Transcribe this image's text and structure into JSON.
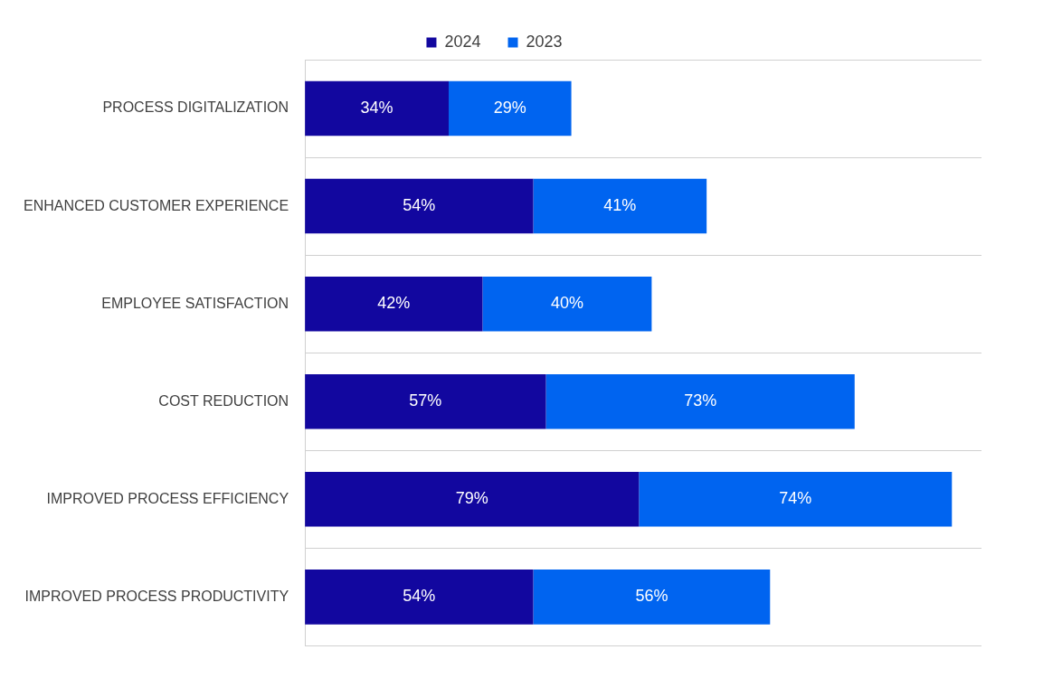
{
  "chart_data": {
    "type": "bar",
    "orientation": "horizontal",
    "stacked": true,
    "categories": [
      "PROCESS DIGITALIZATION",
      "ENHANCED CUSTOMER EXPERIENCE",
      "EMPLOYEE SATISFACTION",
      "COST REDUCTION",
      "IMPROVED PROCESS EFFICIENCY",
      "IMPROVED PROCESS PRODUCTIVITY"
    ],
    "series": [
      {
        "name": "2024",
        "color": "#12079f",
        "values": [
          34,
          54,
          42,
          57,
          79,
          54
        ],
        "value_labels": [
          "34%",
          "54%",
          "42%",
          "57%",
          "79%",
          "54%"
        ]
      },
      {
        "name": "2023",
        "color": "#0064f0",
        "values": [
          29,
          41,
          40,
          73,
          74,
          56
        ],
        "value_labels": [
          "29%",
          "41%",
          "40%",
          "73%",
          "74%",
          "56%"
        ]
      }
    ],
    "tick_labels": "y",
    "grid": "y",
    "legend": "top"
  }
}
